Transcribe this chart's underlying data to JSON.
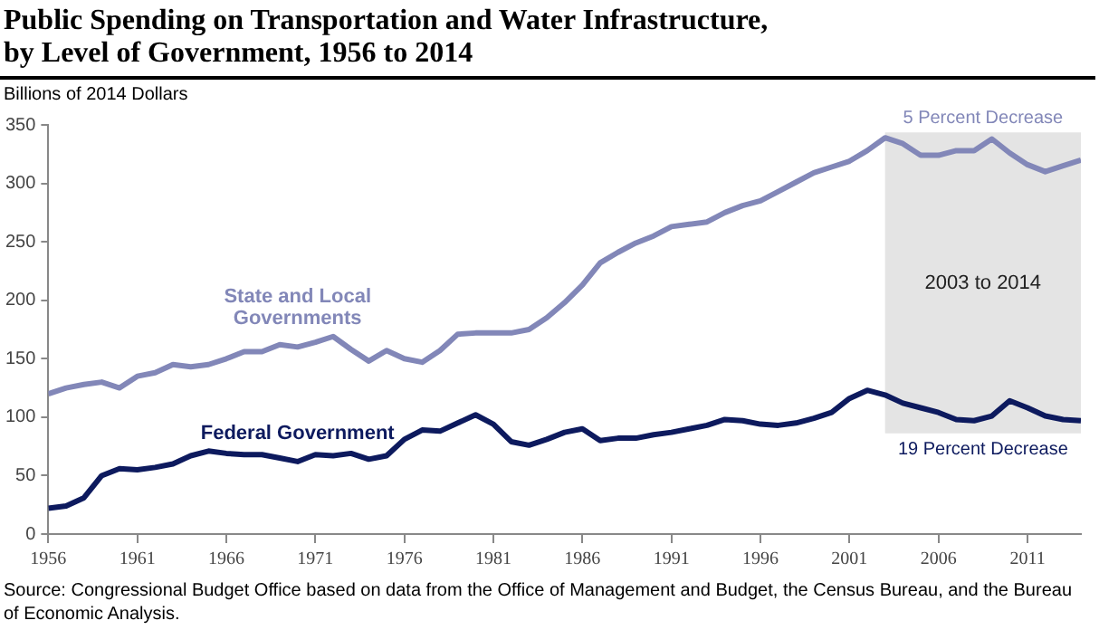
{
  "chart_data": {
    "type": "line",
    "title": "Public Spending on Transportation and Water Infrastructure, by Level of Government, 1956 to 2014",
    "ylabel": "Billions of 2014 Dollars",
    "x": [
      1956,
      1957,
      1958,
      1959,
      1960,
      1961,
      1962,
      1963,
      1964,
      1965,
      1966,
      1967,
      1968,
      1969,
      1970,
      1971,
      1972,
      1973,
      1974,
      1975,
      1976,
      1977,
      1978,
      1979,
      1980,
      1981,
      1982,
      1983,
      1984,
      1985,
      1986,
      1987,
      1988,
      1989,
      1990,
      1991,
      1992,
      1993,
      1994,
      1995,
      1996,
      1997,
      1998,
      1999,
      2000,
      2001,
      2002,
      2003,
      2004,
      2005,
      2006,
      2007,
      2008,
      2009,
      2010,
      2011,
      2012,
      2013,
      2014
    ],
    "series": [
      {
        "name": "State and Local Governments",
        "color": "#8287b8",
        "values": [
          120,
          125,
          128,
          130,
          125,
          135,
          138,
          145,
          143,
          145,
          150,
          156,
          156,
          162,
          160,
          164,
          169,
          158,
          148,
          157,
          150,
          147,
          157,
          171,
          172,
          172,
          172,
          175,
          185,
          198,
          213,
          232,
          241,
          249,
          255,
          263,
          265,
          267,
          275,
          281,
          285,
          293,
          301,
          309,
          314,
          319,
          328,
          339,
          334,
          324,
          324,
          328,
          328,
          338,
          326,
          316,
          310,
          315,
          320
        ]
      },
      {
        "name": "Federal Government",
        "color": "#0d1a5e",
        "values": [
          22,
          24,
          31,
          50,
          56,
          55,
          57,
          60,
          67,
          71,
          69,
          68,
          68,
          65,
          62,
          68,
          67,
          69,
          64,
          67,
          81,
          89,
          88,
          95,
          102,
          94,
          79,
          76,
          81,
          87,
          90,
          80,
          82,
          82,
          85,
          87,
          90,
          93,
          98,
          97,
          94,
          93,
          95,
          99,
          104,
          116,
          123,
          119,
          112,
          108,
          104,
          98,
          97,
          101,
          114,
          108,
          101,
          98,
          97
        ]
      }
    ],
    "xlim": [
      1956,
      2014
    ],
    "xticks": [
      1956,
      1961,
      1966,
      1971,
      1976,
      1981,
      1986,
      1991,
      1996,
      2001,
      2006,
      2011
    ],
    "ylim": [
      0,
      350
    ],
    "yticks": [
      0,
      50,
      100,
      150,
      200,
      250,
      300,
      350
    ],
    "grid": false,
    "legend": false,
    "marker": "none",
    "line_style": "solid",
    "bands": [
      {
        "axis": "x",
        "from": 2003,
        "to": 2014,
        "label": "2003 to 2014",
        "color": "#e4e4e4"
      }
    ],
    "annotations": [
      "5 Percent Decrease",
      "19 Percent Decrease",
      "Source: Congressional Budget Office based on data from the Office of Management and Budget, the Census Bureau, and the Bureau of Economic Analysis."
    ]
  }
}
